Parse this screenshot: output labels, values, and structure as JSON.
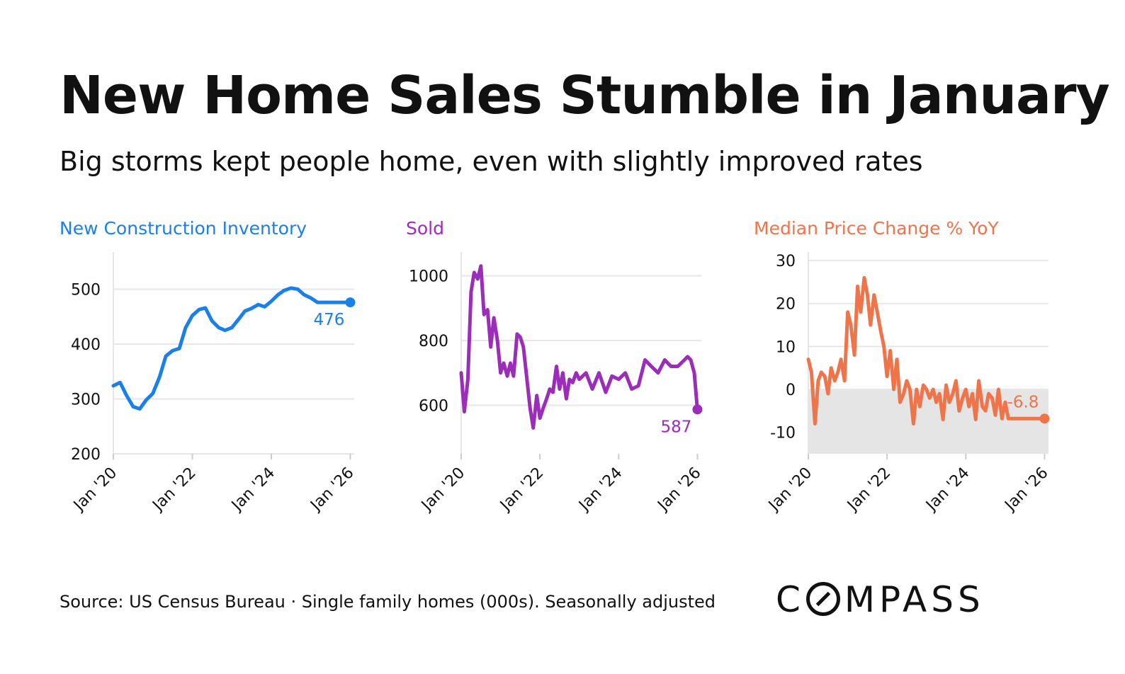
{
  "header": {
    "title": "New Home Sales Stumble in January",
    "subtitle": "Big storms kept people home, even with slightly improved rates"
  },
  "footer": {
    "source": "Source: US Census Bureau · Single family homes (000s). Seasonally adjusted",
    "logo_before": "C",
    "logo_after": "MPASS",
    "logo_text": "COMPASS"
  },
  "chart_data": [
    {
      "type": "line",
      "title": "New Construction Inventory",
      "color": "#1a7fe6",
      "xlabel": "",
      "ylabel": "",
      "xlim": [
        2020.0,
        2026.1
      ],
      "ylim": [
        200,
        560
      ],
      "yticks": [
        200,
        300,
        400,
        500
      ],
      "xticks": [
        2020,
        2022,
        2024,
        2026
      ],
      "xtick_labels": [
        "Jan '20",
        "Jan '22",
        "Jan '24",
        "Jan '26"
      ],
      "end_label": "476",
      "series": [
        {
          "name": "New Construction Inventory",
          "x": [
            2020.0,
            2020.17,
            2020.33,
            2020.5,
            2020.67,
            2020.83,
            2021.0,
            2021.17,
            2021.33,
            2021.5,
            2021.67,
            2021.83,
            2022.0,
            2022.17,
            2022.33,
            2022.5,
            2022.67,
            2022.83,
            2023.0,
            2023.17,
            2023.33,
            2023.5,
            2023.67,
            2023.83,
            2024.0,
            2024.17,
            2024.33,
            2024.5,
            2024.67,
            2024.83,
            2025.0,
            2025.17,
            2025.33,
            2025.5,
            2025.67,
            2025.83,
            2026.0
          ],
          "y": [
            324,
            330,
            307,
            286,
            282,
            298,
            310,
            340,
            378,
            388,
            392,
            430,
            452,
            463,
            466,
            442,
            430,
            425,
            430,
            445,
            460,
            465,
            472,
            468,
            478,
            490,
            498,
            502,
            500,
            490,
            484,
            476,
            476,
            476,
            476,
            476,
            476
          ]
        }
      ]
    },
    {
      "type": "line",
      "title": "Sold",
      "color": "#9b2db8",
      "xlabel": "",
      "ylabel": "",
      "xlim": [
        2020.0,
        2026.1
      ],
      "ylim": [
        450,
        1060
      ],
      "yticks": [
        600,
        800,
        1000
      ],
      "xticks": [
        2020,
        2022,
        2024,
        2026
      ],
      "xtick_labels": [
        "Jan '20",
        "Jan '22",
        "Jan '24",
        "Jan '26"
      ],
      "end_label": "587",
      "series": [
        {
          "name": "Sold",
          "x": [
            2020.0,
            2020.08,
            2020.17,
            2020.25,
            2020.33,
            2020.42,
            2020.5,
            2020.58,
            2020.67,
            2020.75,
            2020.83,
            2020.92,
            2021.0,
            2021.08,
            2021.17,
            2021.25,
            2021.33,
            2021.42,
            2021.5,
            2021.58,
            2021.67,
            2021.75,
            2021.83,
            2021.92,
            2022.0,
            2022.08,
            2022.17,
            2022.25,
            2022.33,
            2022.42,
            2022.5,
            2022.58,
            2022.67,
            2022.75,
            2022.83,
            2022.92,
            2023.0,
            2023.17,
            2023.33,
            2023.5,
            2023.67,
            2023.83,
            2024.0,
            2024.17,
            2024.33,
            2024.5,
            2024.67,
            2024.83,
            2025.0,
            2025.17,
            2025.33,
            2025.5,
            2025.67,
            2025.75,
            2025.83,
            2025.92,
            2026.0
          ],
          "y": [
            700,
            580,
            680,
            950,
            1010,
            990,
            1030,
            880,
            895,
            780,
            870,
            800,
            700,
            730,
            690,
            730,
            690,
            820,
            810,
            780,
            680,
            590,
            530,
            630,
            560,
            590,
            620,
            650,
            640,
            720,
            650,
            700,
            620,
            680,
            670,
            700,
            680,
            700,
            650,
            700,
            640,
            690,
            680,
            700,
            650,
            660,
            740,
            720,
            700,
            740,
            720,
            720,
            740,
            750,
            740,
            700,
            587
          ]
        }
      ]
    },
    {
      "type": "line",
      "title": "Median Price Change % YoY",
      "color": "#f0744a",
      "xlabel": "",
      "ylabel": "",
      "xlim": [
        2020.0,
        2026.1
      ],
      "ylim": [
        -15,
        31
      ],
      "yticks": [
        -10,
        0,
        10,
        20,
        30
      ],
      "xticks": [
        2020,
        2022,
        2024,
        2026
      ],
      "xtick_labels": [
        "Jan '20",
        "Jan '22",
        "Jan '24",
        "Jan '26"
      ],
      "shaded_region": [
        -15,
        0
      ],
      "end_label": "-6.8",
      "series": [
        {
          "name": "Median Price Change % YoY",
          "x": [
            2020.0,
            2020.08,
            2020.17,
            2020.25,
            2020.33,
            2020.42,
            2020.5,
            2020.58,
            2020.67,
            2020.75,
            2020.83,
            2020.92,
            2021.0,
            2021.08,
            2021.17,
            2021.25,
            2021.33,
            2021.42,
            2021.5,
            2021.58,
            2021.67,
            2021.75,
            2021.83,
            2021.92,
            2022.0,
            2022.08,
            2022.17,
            2022.25,
            2022.33,
            2022.42,
            2022.5,
            2022.58,
            2022.67,
            2022.75,
            2022.83,
            2022.92,
            2023.0,
            2023.08,
            2023.17,
            2023.25,
            2023.33,
            2023.42,
            2023.5,
            2023.58,
            2023.67,
            2023.75,
            2023.83,
            2023.92,
            2024.0,
            2024.08,
            2024.17,
            2024.25,
            2024.33,
            2024.42,
            2024.5,
            2024.58,
            2024.67,
            2024.75,
            2024.83,
            2024.92,
            2025.0,
            2025.08,
            2025.17,
            2025.25,
            2025.33,
            2025.42,
            2025.5,
            2025.58,
            2025.67,
            2025.75,
            2025.83,
            2025.92,
            2026.0
          ],
          "y": [
            7,
            4,
            -8,
            2,
            4,
            3,
            -1,
            5,
            2,
            4,
            7,
            2,
            18,
            15,
            8,
            24,
            18,
            26,
            22,
            15,
            22,
            18,
            14,
            10,
            3,
            9,
            0,
            7,
            -3,
            -1,
            2,
            0,
            -8,
            0,
            -4,
            1,
            0,
            -2,
            0,
            -3,
            -1,
            -7,
            1,
            -3,
            -1,
            2,
            -5,
            -2,
            0,
            -4,
            -1,
            -7,
            2,
            -4,
            -5,
            -1,
            -2,
            -6,
            0,
            -6.8,
            -3,
            -6.8,
            -6.8,
            -6.8,
            -6.8,
            -6.8,
            -6.8,
            -6.8,
            -6.8,
            -6.8,
            -6.8,
            -6.8,
            -6.8
          ]
        }
      ]
    }
  ]
}
